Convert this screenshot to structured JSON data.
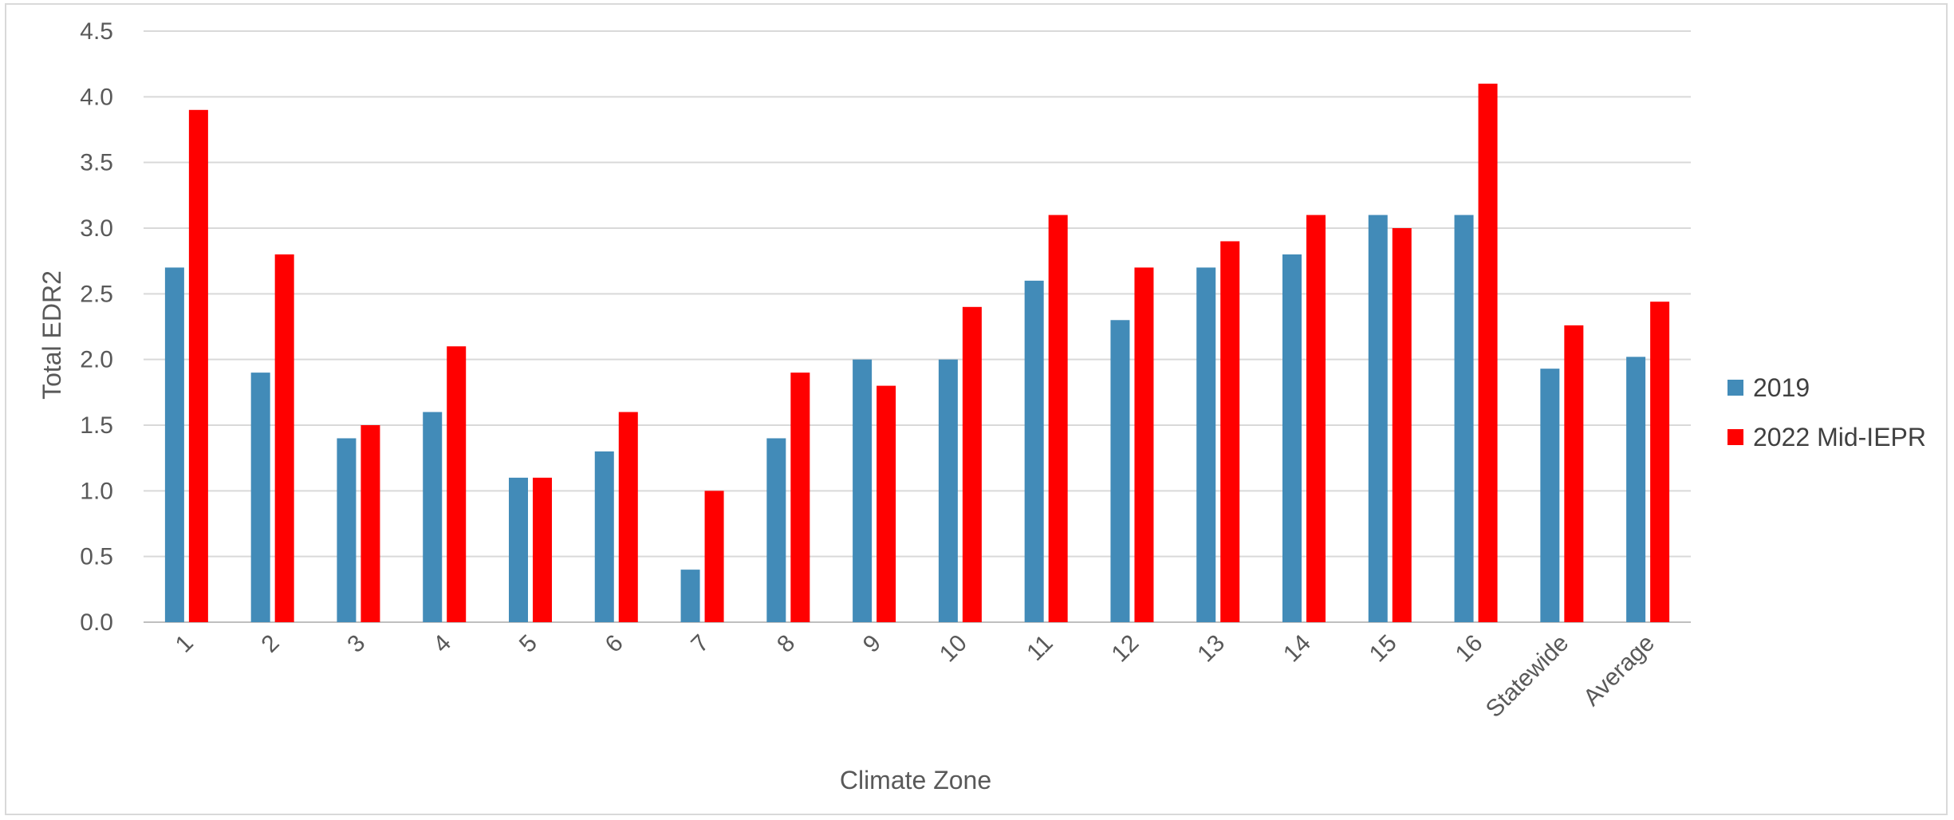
{
  "chart_data": {
    "type": "bar",
    "title": "",
    "xlabel": "Climate Zone",
    "ylabel": "Total EDR2",
    "ylim": [
      0,
      4.5
    ],
    "yticks": [
      "0.0",
      "0.5",
      "1.0",
      "1.5",
      "2.0",
      "2.5",
      "3.0",
      "3.5",
      "4.0",
      "4.5"
    ],
    "categories": [
      "1",
      "2",
      "3",
      "4",
      "5",
      "6",
      "7",
      "8",
      "9",
      "10",
      "11",
      "12",
      "13",
      "14",
      "15",
      "16",
      "Statewide",
      "Average"
    ],
    "series": [
      {
        "name": "2019",
        "color": "#428bb8",
        "values": [
          2.7,
          1.9,
          1.4,
          1.6,
          1.1,
          1.3,
          0.4,
          1.4,
          2.0,
          2.0,
          2.6,
          2.3,
          2.7,
          2.8,
          3.1,
          3.1,
          1.93,
          2.02
        ]
      },
      {
        "name": "2022 Mid-IEPR",
        "color": "#ff0000",
        "values": [
          3.9,
          2.8,
          1.5,
          2.1,
          1.1,
          1.6,
          1.0,
          1.9,
          1.8,
          2.4,
          3.1,
          2.7,
          2.9,
          3.1,
          3.0,
          4.1,
          2.26,
          2.44
        ]
      }
    ],
    "grid": true,
    "legend_position": "right"
  }
}
